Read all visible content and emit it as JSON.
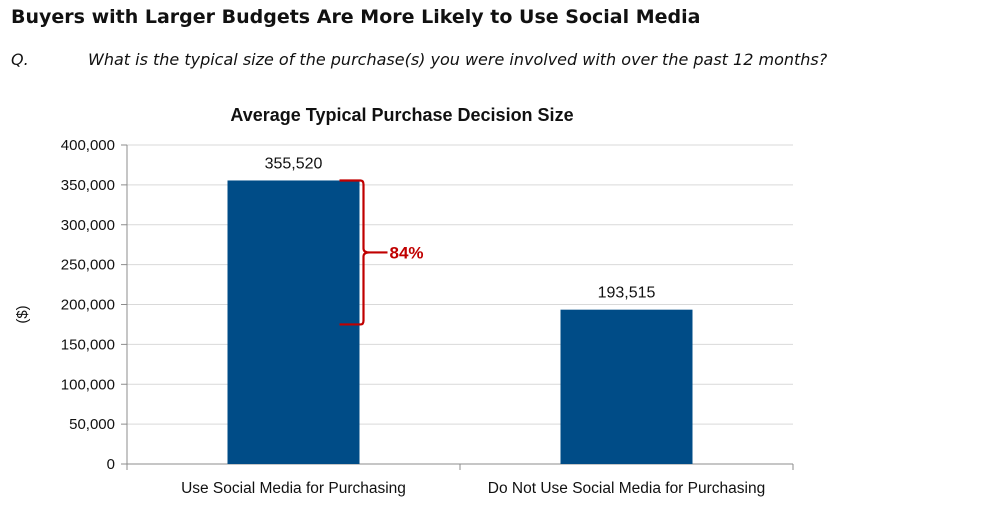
{
  "header": {
    "title": "Buyers with Larger Budgets Are More Likely to Use Social Media",
    "question_marker": "Q.",
    "question": "What is the typical size of the purchase(s) you were involved with over the past 12 months?"
  },
  "chart_data": {
    "type": "bar",
    "title": "Average Typical Purchase Decision Size",
    "xlabel": "",
    "ylabel": "($)",
    "categories": [
      "Use Social Media for Purchasing",
      "Do Not Use Social Media for Purchasing"
    ],
    "values": [
      355520,
      193515
    ],
    "data_labels": [
      "355,520",
      "193,515"
    ],
    "ylim": [
      0,
      400000
    ],
    "yticks": [
      0,
      50000,
      100000,
      150000,
      200000,
      250000,
      300000,
      350000,
      400000
    ],
    "ytick_labels": [
      "0",
      "50,000",
      "100,000",
      "150,000",
      "200,000",
      "250,000",
      "300,000",
      "350,000",
      "400,000"
    ],
    "grid": true,
    "legend": "none",
    "bar_color": "#004c87",
    "annotation": {
      "text": "84%",
      "color": "#c00000",
      "from_value": 355520,
      "to_value": 175000
    }
  }
}
